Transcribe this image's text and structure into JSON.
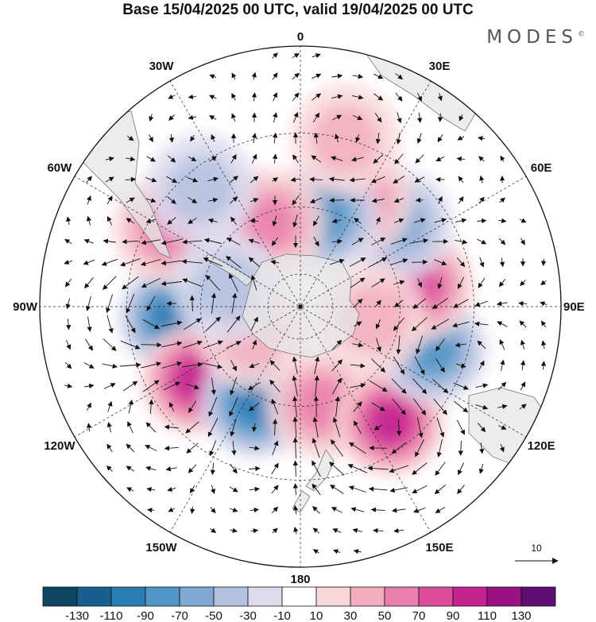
{
  "title": "Base 15/04/2025 00 UTC, valid 19/04/2025 00 UTC",
  "logo": "MODES",
  "logo_mark": "©",
  "longitude_labels": [
    "0",
    "30E",
    "60E",
    "90E",
    "120E",
    "150E",
    "180",
    "150W",
    "120W",
    "90W",
    "60W",
    "30W"
  ],
  "vector_reference": {
    "label": "10"
  },
  "colorbar": {
    "labels": [
      "-130",
      "-110",
      "-90",
      "-70",
      "-50",
      "-30",
      "-10",
      "10",
      "30",
      "50",
      "70",
      "90",
      "110",
      "130"
    ],
    "colors": [
      "#0e4663",
      "#175f8f",
      "#2a7cb6",
      "#4f95c6",
      "#7fa9d3",
      "#b3c1e0",
      "#dcdcee",
      "#ffffff",
      "#f8d7da",
      "#f2aebe",
      "#ea7fac",
      "#dc4c9c",
      "#c42390",
      "#9c1283",
      "#5e0d71"
    ]
  },
  "land_color": "#e6e6e6",
  "anomalies": [
    {
      "lon": -95,
      "lat": -52,
      "value": -130
    },
    {
      "lon": -125,
      "lat": -52,
      "value": 110
    },
    {
      "lon": -155,
      "lat": -58,
      "value": -90
    },
    {
      "lon": 168,
      "lat": -60,
      "value": 50
    },
    {
      "lon": 142,
      "lat": -47,
      "value": 90
    },
    {
      "lon": 108,
      "lat": -49,
      "value": -70
    },
    {
      "lon": 80,
      "lat": -54,
      "value": 70
    },
    {
      "lon": 50,
      "lat": -52,
      "value": -50
    },
    {
      "lon": 28,
      "lat": -54,
      "value": 50
    },
    {
      "lon": 15,
      "lat": -62,
      "value": -70
    },
    {
      "lon": -20,
      "lat": -63,
      "value": 50
    },
    {
      "lon": -60,
      "lat": -45,
      "value": 50
    },
    {
      "lon": -40,
      "lat": -45,
      "value": -30
    },
    {
      "lon": 15,
      "lat": -40,
      "value": 30
    },
    {
      "lon": -120,
      "lat": -73,
      "value": 30
    },
    {
      "lon": 100,
      "lat": -68,
      "value": 30
    },
    {
      "lon": -75,
      "lat": -67,
      "value": -30
    }
  ]
}
